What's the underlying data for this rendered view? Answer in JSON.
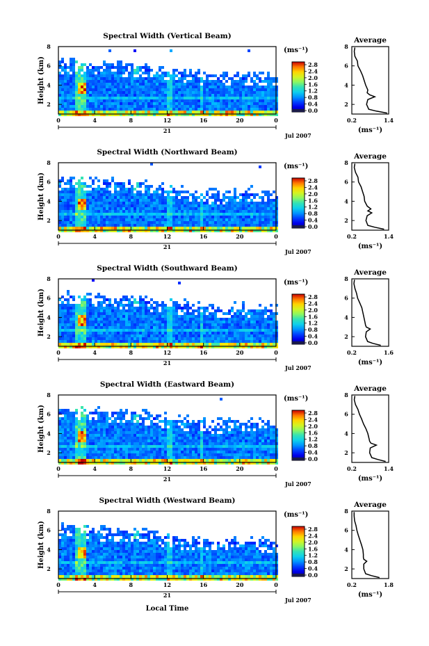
{
  "figure": {
    "xlabel": "Local Time",
    "colorbar_unit": "(ms⁻¹)",
    "average_unit": "(ms⁻¹)",
    "average_title": "Average",
    "date_day": "21",
    "date_month_year": "Jul 2007"
  },
  "chart_data": [
    {
      "type": "heatmap",
      "title": "Spectral Width (Vertical Beam)",
      "xlabel": "",
      "ylabel": "Height (km)",
      "x_ticks": [
        "0",
        "4",
        "8",
        "12",
        "16",
        "20",
        "0"
      ],
      "y_ticks": [
        "2",
        "4",
        "6",
        "8"
      ],
      "xlim": [
        0,
        24
      ],
      "ylim": [
        1,
        8
      ],
      "colorbar": {
        "ticks": [
          "0.0",
          "0.4",
          "0.8",
          "1.2",
          "1.6",
          "2.0",
          "2.4",
          "2.8"
        ],
        "range": [
          0,
          3.0
        ]
      },
      "echo_top_km": [
        6.6,
        6.6,
        6.5,
        6.4,
        6.4,
        6.3,
        6.3,
        6.2,
        6.0,
        5.8,
        5.6,
        5.5,
        5.3,
        5.2,
        5.2,
        5.3,
        5.4,
        5.3,
        5.0
      ],
      "average_profile": {
        "xlim": [
          0.2,
          1.4
        ],
        "x_ticks": [
          "0.2",
          "1.4"
        ],
        "y_ticks": [
          "2",
          "4",
          "6",
          "8"
        ],
        "height_km": [
          1.1,
          1.3,
          1.5,
          2.0,
          2.5,
          2.8,
          3.0,
          3.2,
          3.5,
          4.0,
          4.5,
          5.0,
          5.5,
          6.0,
          6.5,
          7.0,
          7.5,
          7.9
        ],
        "width_ms": [
          1.35,
          1.0,
          0.75,
          0.68,
          0.72,
          0.95,
          0.78,
          0.7,
          0.72,
          0.65,
          0.6,
          0.55,
          0.48,
          0.4,
          0.38,
          0.3,
          0.28,
          0.3
        ]
      }
    },
    {
      "type": "heatmap",
      "title": "Spectral Width (Northward Beam)",
      "xlabel": "",
      "ylabel": "Height (km)",
      "x_ticks": [
        "0",
        "4",
        "8",
        "12",
        "16",
        "20",
        "0"
      ],
      "y_ticks": [
        "2",
        "4",
        "6",
        "8"
      ],
      "xlim": [
        0,
        24
      ],
      "ylim": [
        1,
        8
      ],
      "colorbar": {
        "ticks": [
          "0.0",
          "0.4",
          "0.8",
          "1.2",
          "1.6",
          "2.0",
          "2.4",
          "2.8"
        ],
        "range": [
          0,
          3.0
        ]
      },
      "echo_top_km": [
        6.5,
        6.5,
        6.4,
        6.4,
        6.3,
        6.2,
        6.2,
        6.0,
        5.8,
        5.6,
        5.5,
        5.3,
        5.2,
        5.1,
        5.2,
        5.3,
        5.3,
        5.2,
        4.9
      ],
      "average_profile": {
        "xlim": [
          0.2,
          1.4
        ],
        "x_ticks": [
          "0.2",
          "1.4"
        ],
        "y_ticks": [
          "2",
          "4",
          "6",
          "8"
        ],
        "height_km": [
          1.1,
          1.3,
          1.5,
          2.0,
          2.5,
          2.8,
          3.0,
          3.2,
          3.5,
          4.0,
          4.5,
          5.0,
          5.5,
          6.0,
          6.5,
          7.0,
          7.5,
          7.9
        ],
        "width_ms": [
          1.25,
          0.95,
          0.72,
          0.66,
          0.7,
          0.85,
          0.72,
          0.82,
          0.7,
          0.62,
          0.6,
          0.55,
          0.5,
          0.42,
          0.4,
          0.32,
          0.28,
          0.3
        ]
      }
    },
    {
      "type": "heatmap",
      "title": "Spectral Width (Southward Beam)",
      "xlabel": "",
      "ylabel": "Height (km)",
      "x_ticks": [
        "0",
        "4",
        "8",
        "12",
        "16",
        "20",
        "0"
      ],
      "y_ticks": [
        "2",
        "4",
        "6",
        "8"
      ],
      "xlim": [
        0,
        24
      ],
      "ylim": [
        1,
        8
      ],
      "colorbar": {
        "ticks": [
          "0.0",
          "0.4",
          "0.8",
          "1.2",
          "1.6",
          "2.0",
          "2.4",
          "2.8"
        ],
        "range": [
          0,
          3.0
        ]
      },
      "echo_top_km": [
        6.7,
        6.6,
        6.5,
        6.5,
        6.4,
        6.3,
        6.3,
        6.1,
        5.9,
        5.7,
        5.6,
        5.5,
        5.4,
        5.3,
        5.3,
        5.4,
        5.4,
        5.3,
        5.1
      ],
      "average_profile": {
        "xlim": [
          0.2,
          1.6
        ],
        "x_ticks": [
          "0.2",
          "1.6"
        ],
        "y_ticks": [
          "2",
          "4",
          "6",
          "8"
        ],
        "height_km": [
          1.1,
          1.3,
          1.5,
          2.0,
          2.5,
          2.8,
          3.0,
          3.2,
          3.5,
          4.0,
          4.5,
          5.0,
          5.5,
          6.0,
          6.5,
          7.0,
          7.5,
          7.9
        ],
        "width_ms": [
          1.3,
          1.0,
          0.8,
          0.72,
          0.75,
          0.9,
          0.75,
          0.72,
          0.7,
          0.66,
          0.62,
          0.58,
          0.5,
          0.42,
          0.38,
          0.32,
          0.28,
          0.3
        ]
      }
    },
    {
      "type": "heatmap",
      "title": "Spectral Width (Eastward Beam)",
      "xlabel": "",
      "ylabel": "Height (km)",
      "x_ticks": [
        "0",
        "4",
        "8",
        "12",
        "16",
        "20",
        "0"
      ],
      "y_ticks": [
        "2",
        "4",
        "6",
        "8"
      ],
      "xlim": [
        0,
        24
      ],
      "ylim": [
        1,
        8
      ],
      "colorbar": {
        "ticks": [
          "0.0",
          "0.4",
          "0.8",
          "1.2",
          "1.6",
          "2.0",
          "2.4",
          "2.8"
        ],
        "range": [
          0,
          3.0
        ]
      },
      "echo_top_km": [
        6.7,
        6.7,
        6.6,
        6.5,
        6.5,
        6.4,
        6.4,
        6.3,
        6.1,
        5.9,
        5.7,
        5.6,
        5.5,
        5.4,
        5.5,
        5.5,
        5.5,
        5.4,
        5.2
      ],
      "average_profile": {
        "xlim": [
          0.2,
          1.4
        ],
        "x_ticks": [
          "0.2",
          "1.4"
        ],
        "y_ticks": [
          "2",
          "4",
          "6",
          "8"
        ],
        "height_km": [
          1.1,
          1.3,
          1.5,
          2.0,
          2.5,
          2.8,
          3.0,
          3.2,
          3.5,
          4.0,
          4.5,
          5.0,
          5.5,
          6.0,
          6.5,
          7.0,
          7.5,
          7.9
        ],
        "width_ms": [
          1.3,
          1.05,
          0.85,
          0.78,
          0.8,
          1.0,
          0.82,
          0.78,
          0.76,
          0.72,
          0.66,
          0.58,
          0.52,
          0.45,
          0.4,
          0.32,
          0.28,
          0.3
        ]
      }
    },
    {
      "type": "heatmap",
      "title": "Spectral Width (Westward Beam)",
      "xlabel": "Local Time",
      "ylabel": "Height (km)",
      "x_ticks": [
        "0",
        "4",
        "8",
        "12",
        "16",
        "20",
        "0"
      ],
      "y_ticks": [
        "2",
        "4",
        "6",
        "8"
      ],
      "xlim": [
        0,
        24
      ],
      "ylim": [
        1,
        8
      ],
      "colorbar": {
        "ticks": [
          "0.0",
          "0.4",
          "0.8",
          "1.2",
          "1.6",
          "2.0",
          "2.4",
          "2.8"
        ],
        "range": [
          0,
          3.0
        ]
      },
      "echo_top_km": [
        6.5,
        6.5,
        6.4,
        6.3,
        6.3,
        6.2,
        6.2,
        6.0,
        5.8,
        5.6,
        5.4,
        5.3,
        5.2,
        5.1,
        5.2,
        5.2,
        5.2,
        5.1,
        4.9
      ],
      "average_profile": {
        "xlim": [
          0.2,
          1.8
        ],
        "x_ticks": [
          "0.2",
          "1.8"
        ],
        "y_ticks": [
          "2",
          "4",
          "6",
          "8"
        ],
        "height_km": [
          1.1,
          1.3,
          1.5,
          2.0,
          2.5,
          2.8,
          3.0,
          3.2,
          3.5,
          4.0,
          4.5,
          5.0,
          5.5,
          6.0,
          6.5,
          7.0,
          7.5,
          7.9
        ],
        "width_ms": [
          1.4,
          1.05,
          0.8,
          0.72,
          0.72,
          0.85,
          0.72,
          0.7,
          0.7,
          0.68,
          0.62,
          0.55,
          0.48,
          0.42,
          0.38,
          0.32,
          0.3,
          0.3
        ]
      }
    }
  ]
}
